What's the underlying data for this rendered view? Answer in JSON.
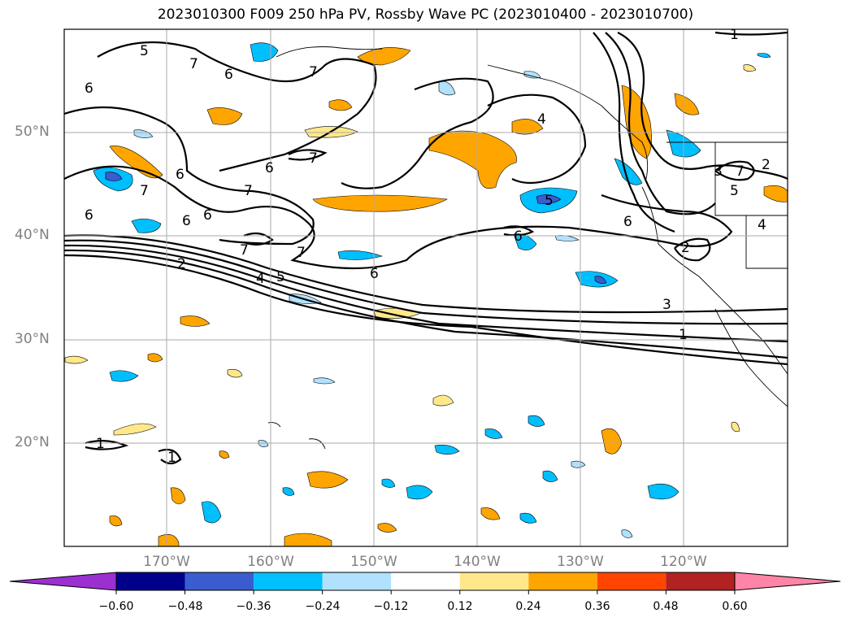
{
  "title": "2023010300 F009 250 hPa PV, Rossby Wave PC (2023010400 - 2023010700)",
  "lat_labels": [
    "50°N",
    "40°N",
    "30°N",
    "20°N"
  ],
  "lon_labels": [
    "170°W",
    "160°W",
    "150°W",
    "140°W",
    "130°W",
    "120°W"
  ],
  "colorbar": {
    "ticks": [
      "−0.60",
      "−0.48",
      "−0.36",
      "−0.24",
      "−0.12",
      "0.12",
      "0.24",
      "0.36",
      "0.48",
      "0.60"
    ],
    "colors": [
      "#9b30d0",
      "#00008b",
      "#3a5ccf",
      "#00bfff",
      "#b0e2ff",
      "#ffffff",
      "#ffe88a",
      "#ffa500",
      "#ff4500",
      "#b22222",
      "#ff85a8"
    ]
  },
  "contour_labels": [
    "1",
    "2",
    "3",
    "4",
    "5",
    "6",
    "7"
  ]
}
